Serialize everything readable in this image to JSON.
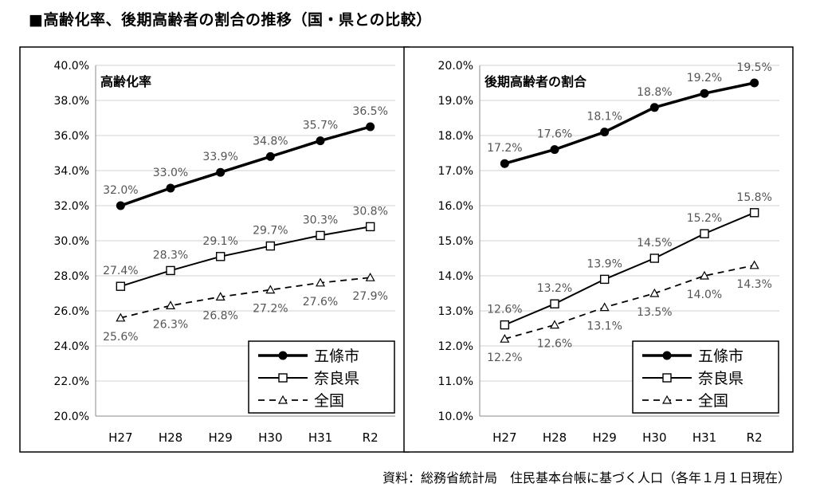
{
  "page": {
    "title": "■高齢化率、後期高齢者の割合の推移（国・県との比較）",
    "source": "資料：総務省統計局　住民基本台帳に基づく人口（各年１月１日現在）"
  },
  "chart_data": [
    {
      "type": "line",
      "title": "高齢化率",
      "categories": [
        "H27",
        "H28",
        "H29",
        "H30",
        "H31",
        "R2"
      ],
      "ylim": [
        20,
        40
      ],
      "yticks": [
        "20.0%",
        "22.0%",
        "24.0%",
        "26.0%",
        "28.0%",
        "30.0%",
        "32.0%",
        "34.0%",
        "36.0%",
        "38.0%",
        "40.0%"
      ],
      "legend_position": "bottom-right",
      "series": [
        {
          "name": "五條市",
          "values": [
            32.0,
            33.0,
            33.9,
            34.8,
            35.7,
            36.5
          ],
          "labels": [
            "32.0%",
            "33.0%",
            "33.9%",
            "34.8%",
            "35.7%",
            "36.5%"
          ],
          "label_pos": "above"
        },
        {
          "name": "奈良県",
          "values": [
            27.4,
            28.3,
            29.1,
            29.7,
            30.3,
            30.8
          ],
          "labels": [
            "27.4%",
            "28.3%",
            "29.1%",
            "29.7%",
            "30.3%",
            "30.8%"
          ],
          "label_pos": "above"
        },
        {
          "name": "全国",
          "values": [
            25.6,
            26.3,
            26.8,
            27.2,
            27.6,
            27.9
          ],
          "labels": [
            "25.6%",
            "26.3%",
            "26.8%",
            "27.2%",
            "27.6%",
            "27.9%"
          ],
          "label_pos": "below"
        }
      ]
    },
    {
      "type": "line",
      "title": "後期高齢者の割合",
      "categories": [
        "H27",
        "H28",
        "H29",
        "H30",
        "H31",
        "R2"
      ],
      "ylim": [
        10,
        20
      ],
      "yticks": [
        "10.0%",
        "11.0%",
        "12.0%",
        "13.0%",
        "14.0%",
        "15.0%",
        "16.0%",
        "17.0%",
        "18.0%",
        "19.0%",
        "20.0%"
      ],
      "legend_position": "bottom-right",
      "series": [
        {
          "name": "五條市",
          "values": [
            17.2,
            17.6,
            18.1,
            18.8,
            19.2,
            19.5
          ],
          "labels": [
            "17.2%",
            "17.6%",
            "18.1%",
            "18.8%",
            "19.2%",
            "19.5%"
          ],
          "label_pos": "above"
        },
        {
          "name": "奈良県",
          "values": [
            12.6,
            13.2,
            13.9,
            14.5,
            15.2,
            15.8
          ],
          "labels": [
            "12.6%",
            "13.2%",
            "13.9%",
            "14.5%",
            "15.2%",
            "15.8%"
          ],
          "label_pos": "above"
        },
        {
          "name": "全国",
          "values": [
            12.2,
            12.6,
            13.1,
            13.5,
            14.0,
            14.3
          ],
          "labels": [
            "12.2%",
            "12.6%",
            "13.1%",
            "13.5%",
            "14.0%",
            "14.3%"
          ],
          "label_pos": "below"
        }
      ]
    }
  ]
}
